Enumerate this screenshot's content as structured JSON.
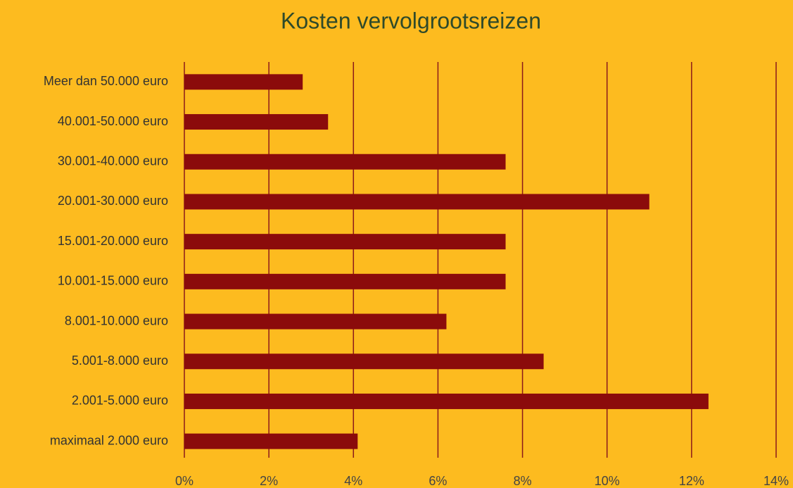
{
  "chart_data": {
    "type": "hbar",
    "title": "Kosten vervolgrootsreizen",
    "categories": [
      "Meer dan 50.000 euro",
      "40.001-50.000 euro",
      "30.001-40.000 euro",
      "20.001-30.000 euro",
      "15.001-20.000 euro",
      "10.001-15.000 euro",
      "8.001-10.000 euro",
      "5.001-8.000 euro",
      "2.001-5.000 euro",
      "maximaal 2.000 euro"
    ],
    "values": [
      2.8,
      3.4,
      7.6,
      11.0,
      7.6,
      7.6,
      6.2,
      8.5,
      12.4,
      4.1
    ],
    "color": "#8b0b0b",
    "xlim": [
      0,
      14
    ],
    "xticks": [
      {
        "value": 0,
        "label": "0%"
      },
      {
        "value": 2,
        "label": "2%"
      },
      {
        "value": 4,
        "label": "4%"
      },
      {
        "value": 6,
        "label": "6%"
      },
      {
        "value": 8,
        "label": "8%"
      },
      {
        "value": 10,
        "label": "10%"
      },
      {
        "value": 12,
        "label": "12%"
      },
      {
        "value": 14,
        "label": "14%"
      }
    ],
    "grid": true
  }
}
